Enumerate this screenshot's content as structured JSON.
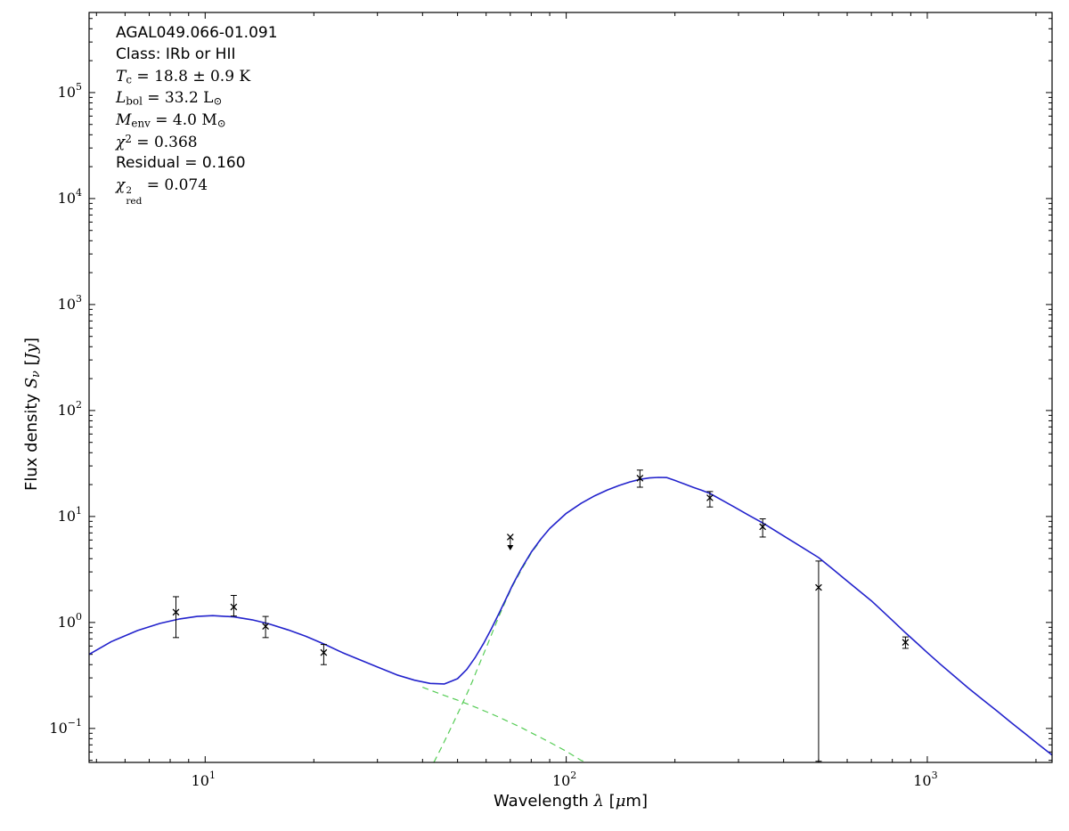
{
  "figure": {
    "background": "#ffffff",
    "axis_color": "#000000",
    "model_color": "#2222cc",
    "component_color": "#55cc55",
    "marker_color": "#000000"
  },
  "annotation": {
    "lines": [
      {
        "segments": [
          {
            "text": "AGAL049.066-01.091",
            "font": "sans"
          }
        ]
      },
      {
        "segments": [
          {
            "text": "Class: IRb or HII",
            "font": "sans"
          }
        ]
      },
      {
        "segments": [
          {
            "text": "T",
            "font": "serif",
            "italic": true
          },
          {
            "text": "c",
            "font": "serif",
            "script": "sub"
          },
          {
            "text": " = 18.8 ± 0.9 K",
            "font": "serif"
          }
        ]
      },
      {
        "segments": [
          {
            "text": "L",
            "font": "serif",
            "italic": true
          },
          {
            "text": "bol",
            "font": "serif",
            "script": "sub"
          },
          {
            "text": " = 33.2 L",
            "font": "serif"
          },
          {
            "text": "⊙",
            "font": "serif",
            "script": "sub"
          }
        ]
      },
      {
        "segments": [
          {
            "text": "M",
            "font": "serif",
            "italic": true
          },
          {
            "text": "env",
            "font": "serif",
            "script": "sub"
          },
          {
            "text": " = 4.0 M",
            "font": "serif"
          },
          {
            "text": "⊙",
            "font": "serif",
            "script": "sub"
          }
        ]
      },
      {
        "segments": [
          {
            "text": "χ",
            "font": "serif",
            "italic": true
          },
          {
            "text": "2",
            "font": "serif",
            "script": "sup"
          },
          {
            "text": " = 0.368",
            "font": "serif"
          }
        ]
      },
      {
        "segments": [
          {
            "text": "Residual = 0.160",
            "font": "sans"
          }
        ]
      },
      {
        "segments": [
          {
            "text": "χ",
            "font": "serif",
            "italic": true
          },
          {
            "stack": {
              "sup": "2",
              "sub": "red"
            }
          },
          {
            "text": " = 0.074",
            "font": "serif"
          }
        ]
      }
    ]
  },
  "chart_data": {
    "type": "line",
    "title": "",
    "xlabel": "Wavelength λ [μm]",
    "ylabel": "Flux density Sν [Jy]",
    "xscale": "log",
    "yscale": "log",
    "xlim": [
      4.77,
      2216
    ],
    "ylim": [
      0.0478,
      570000
    ],
    "xticks": [
      1,
      2,
      3
    ],
    "yticks": [
      -1,
      0,
      1,
      2,
      3,
      4,
      5
    ],
    "grid": false,
    "legend": null,
    "xlabel_segments": [
      {
        "text": "Wavelength ",
        "font": "sans"
      },
      {
        "text": "λ",
        "font": "serif",
        "italic": true
      },
      {
        "text": " [",
        "font": "sans"
      },
      {
        "text": "μ",
        "font": "serif",
        "italic": true
      },
      {
        "text": "m]",
        "font": "sans"
      }
    ],
    "ylabel_segments": [
      {
        "text": "Flux density ",
        "font": "sans"
      },
      {
        "text": "S",
        "font": "serif",
        "italic": true
      },
      {
        "text": "ν",
        "font": "serif",
        "italic": true,
        "script": "sub"
      },
      {
        "text": " [",
        "font": "sans"
      },
      {
        "text": "Jy",
        "font": "serif",
        "italic": true
      },
      {
        "text": "]",
        "font": "sans"
      }
    ],
    "series": [
      {
        "name": "warm-component",
        "color": "#55cc55",
        "dash": "7 5",
        "width": 1.2,
        "points": [
          [
            40,
            0.245
          ],
          [
            45,
            0.21
          ],
          [
            50,
            0.185
          ],
          [
            55,
            0.163
          ],
          [
            60,
            0.144
          ],
          [
            65,
            0.128
          ],
          [
            70,
            0.114
          ],
          [
            75,
            0.102
          ],
          [
            80,
            0.091
          ],
          [
            85,
            0.082
          ],
          [
            90,
            0.074
          ],
          [
            95,
            0.067
          ],
          [
            100,
            0.061
          ],
          [
            105,
            0.055
          ],
          [
            110,
            0.05
          ],
          [
            114,
            0.0478
          ]
        ]
      },
      {
        "name": "cold-component",
        "color": "#55cc55",
        "dash": "7 5",
        "width": 1.2,
        "points": [
          [
            43,
            0.048
          ],
          [
            45,
            0.065
          ],
          [
            47,
            0.088
          ],
          [
            49,
            0.118
          ],
          [
            51,
            0.158
          ],
          [
            53,
            0.21
          ],
          [
            55,
            0.28
          ],
          [
            57,
            0.38
          ],
          [
            59,
            0.5
          ],
          [
            61,
            0.66
          ],
          [
            63,
            0.87
          ],
          [
            65,
            1.13
          ],
          [
            68,
            1.6
          ],
          [
            71,
            2.2
          ],
          [
            75,
            3.1
          ],
          [
            80,
            4.5
          ],
          [
            85,
            6.0
          ]
        ]
      },
      {
        "name": "total-model",
        "color": "#2222cc",
        "dash": null,
        "width": 1.6,
        "points": [
          [
            4.77,
            0.5
          ],
          [
            5.5,
            0.66
          ],
          [
            6.5,
            0.84
          ],
          [
            7.5,
            0.98
          ],
          [
            8.5,
            1.08
          ],
          [
            9.5,
            1.14
          ],
          [
            10.5,
            1.16
          ],
          [
            12,
            1.13
          ],
          [
            13.5,
            1.06
          ],
          [
            15,
            0.97
          ],
          [
            17,
            0.85
          ],
          [
            19,
            0.74
          ],
          [
            21.5,
            0.62
          ],
          [
            24,
            0.52
          ],
          [
            27,
            0.44
          ],
          [
            30,
            0.38
          ],
          [
            34,
            0.32
          ],
          [
            38,
            0.285
          ],
          [
            42,
            0.266
          ],
          [
            46,
            0.263
          ],
          [
            50,
            0.295
          ],
          [
            53,
            0.36
          ],
          [
            56,
            0.47
          ],
          [
            59,
            0.63
          ],
          [
            62,
            0.87
          ],
          [
            65,
            1.2
          ],
          [
            68,
            1.65
          ],
          [
            71,
            2.25
          ],
          [
            75,
            3.2
          ],
          [
            80,
            4.6
          ],
          [
            85,
            6.1
          ],
          [
            90,
            7.7
          ],
          [
            100,
            10.7
          ],
          [
            110,
            13.3
          ],
          [
            120,
            15.7
          ],
          [
            130,
            17.8
          ],
          [
            140,
            19.6
          ],
          [
            150,
            21.2
          ],
          [
            160,
            22.4
          ],
          [
            170,
            23.1
          ],
          [
            180,
            23.4
          ],
          [
            190,
            23.3
          ],
          [
            200,
            21.9
          ],
          [
            212,
            20.3
          ],
          [
            225,
            18.8
          ],
          [
            237,
            17.7
          ],
          [
            250,
            16.5
          ],
          [
            270,
            14.25
          ],
          [
            292,
            12.3
          ],
          [
            320,
            10.3
          ],
          [
            350,
            8.7
          ],
          [
            380,
            7.3
          ],
          [
            415,
            6.07
          ],
          [
            455,
            5.0
          ],
          [
            500,
            4.1
          ],
          [
            545,
            3.22
          ],
          [
            595,
            2.52
          ],
          [
            645,
            2.01
          ],
          [
            700,
            1.6
          ],
          [
            755,
            1.26
          ],
          [
            812,
            1.0
          ],
          [
            870,
            0.8
          ],
          [
            935,
            0.64
          ],
          [
            1000,
            0.52
          ],
          [
            1090,
            0.4
          ],
          [
            1190,
            0.31
          ],
          [
            1300,
            0.24
          ],
          [
            1430,
            0.185
          ],
          [
            1560,
            0.146
          ],
          [
            1700,
            0.115
          ],
          [
            1860,
            0.09
          ],
          [
            2030,
            0.071
          ],
          [
            2216,
            0.056
          ]
        ]
      }
    ],
    "data_points": [
      {
        "x": 8.3,
        "y": 1.25,
        "lo": 0.72,
        "hi": 1.75
      },
      {
        "x": 12,
        "y": 1.4,
        "lo": 1.15,
        "hi": 1.8
      },
      {
        "x": 14.7,
        "y": 0.92,
        "lo": 0.72,
        "hi": 1.14
      },
      {
        "x": 21.3,
        "y": 0.52,
        "lo": 0.4,
        "hi": 0.62
      },
      {
        "x": 160,
        "y": 23,
        "lo": 18.9,
        "hi": 27.4
      },
      {
        "x": 250,
        "y": 15,
        "lo": 12.3,
        "hi": 17.2
      },
      {
        "x": 350,
        "y": 8.0,
        "lo": 6.4,
        "hi": 9.5
      },
      {
        "x": 500,
        "y": 2.14,
        "lo": 0.049,
        "hi": 3.8
      },
      {
        "x": 870,
        "y": 0.65,
        "lo": 0.57,
        "hi": 0.73
      }
    ],
    "upper_limits": [
      {
        "x": 70,
        "y": 6.4
      }
    ]
  }
}
